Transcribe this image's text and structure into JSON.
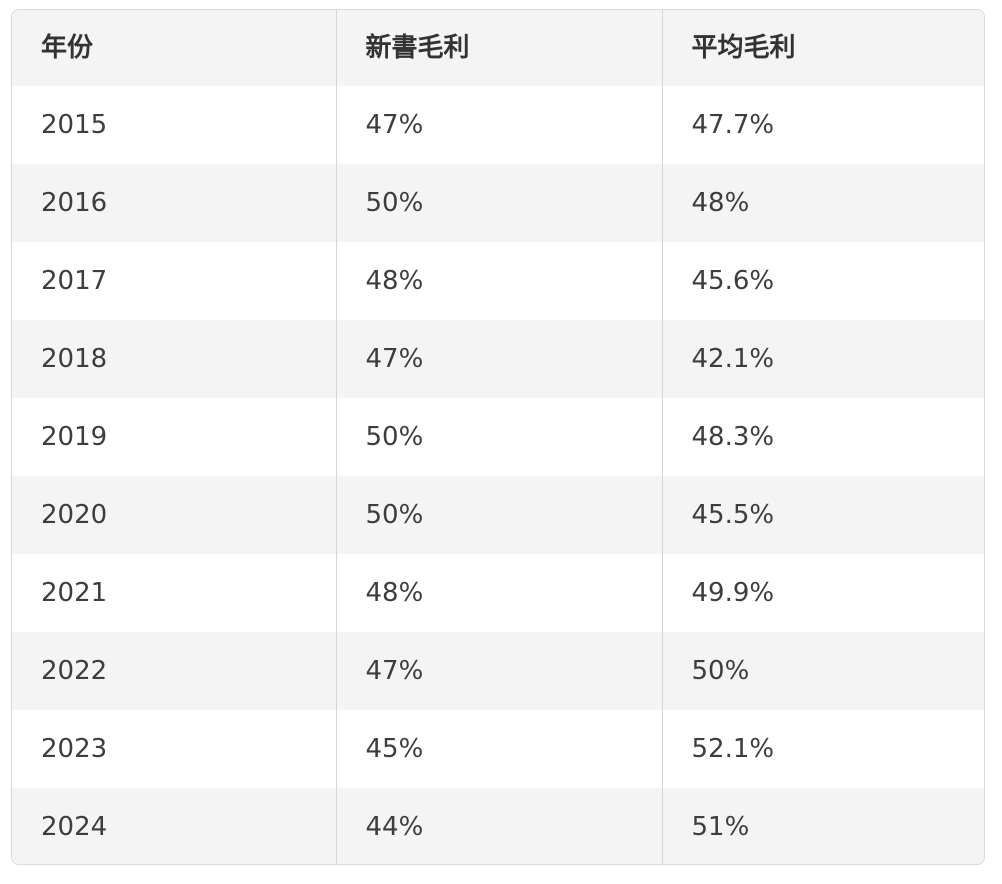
{
  "chart_data": {
    "type": "table",
    "columns": [
      "年份",
      "新書毛利",
      "平均毛利"
    ],
    "rows": [
      [
        "2015",
        "47%",
        "47.7%"
      ],
      [
        "2016",
        "50%",
        "48%"
      ],
      [
        "2017",
        "48%",
        "45.6%"
      ],
      [
        "2018",
        "47%",
        "42.1%"
      ],
      [
        "2019",
        "50%",
        "48.3%"
      ],
      [
        "2020",
        "50%",
        "45.5%"
      ],
      [
        "2021",
        "48%",
        "49.9%"
      ],
      [
        "2022",
        "47%",
        "50%"
      ],
      [
        "2023",
        "45%",
        "52.1%"
      ],
      [
        "2024",
        "44%",
        "51%"
      ]
    ],
    "numeric": {
      "year": [
        2015,
        2016,
        2017,
        2018,
        2019,
        2020,
        2021,
        2022,
        2023,
        2024
      ],
      "new_book_margin_pct": [
        47,
        50,
        48,
        47,
        50,
        50,
        48,
        47,
        45,
        44
      ],
      "avg_margin_pct": [
        47.7,
        48,
        45.6,
        42.1,
        48.3,
        45.5,
        49.9,
        50,
        52.1,
        51
      ]
    }
  },
  "colors": {
    "header_bg": "#f4f4f5",
    "stripe_bg": "#f4f4f5",
    "row_bg": "#ffffff",
    "border": "#d9d9d9",
    "text": "#3d3d3d"
  }
}
